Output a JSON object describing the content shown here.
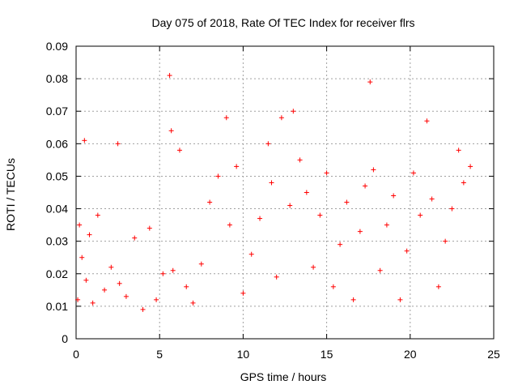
{
  "chart_data": {
    "type": "scatter",
    "title": "Day 075 of 2018, Rate Of TEC Index for receiver flrs",
    "xlabel": "GPS time / hours",
    "ylabel": "ROTI / TECUs",
    "xlim": [
      0,
      25
    ],
    "ylim": [
      0,
      0.09
    ],
    "x_ticks": [
      0,
      5,
      10,
      15,
      20,
      25
    ],
    "x_tick_labels": [
      "0",
      "5",
      "10",
      "15",
      "20",
      "25"
    ],
    "y_ticks": [
      0,
      0.01,
      0.02,
      0.03,
      0.04,
      0.05,
      0.06,
      0.07,
      0.08,
      0.09
    ],
    "y_tick_labels": [
      "0",
      "0.01",
      "0.02",
      "0.03",
      "0.04",
      "0.05",
      "0.06",
      "0.07",
      "0.08",
      "0.09"
    ],
    "grid": true,
    "marker": "+",
    "color": "#ff0000",
    "series": [
      {
        "name": "ROTI",
        "x": [
          0.1,
          0.2,
          0.35,
          0.5,
          0.6,
          0.8,
          1.0,
          1.3,
          1.7,
          2.1,
          2.5,
          2.6,
          3.0,
          3.5,
          4.0,
          4.4,
          4.8,
          5.2,
          5.6,
          5.7,
          5.8,
          6.2,
          6.6,
          7.0,
          7.5,
          8.0,
          8.5,
          9.0,
          9.2,
          9.6,
          10.0,
          10.5,
          11.0,
          11.5,
          11.7,
          12.0,
          12.3,
          12.8,
          13.0,
          13.4,
          13.8,
          14.2,
          14.6,
          15.0,
          15.4,
          15.8,
          16.2,
          16.6,
          17.0,
          17.3,
          17.6,
          17.8,
          18.2,
          18.6,
          19.0,
          19.4,
          19.8,
          20.2,
          20.6,
          21.0,
          21.3,
          21.7,
          22.1,
          22.5,
          22.9,
          23.2,
          23.6
        ],
        "y": [
          0.012,
          0.035,
          0.025,
          0.061,
          0.018,
          0.032,
          0.011,
          0.038,
          0.015,
          0.022,
          0.06,
          0.017,
          0.013,
          0.031,
          0.009,
          0.034,
          0.012,
          0.02,
          0.081,
          0.064,
          0.021,
          0.058,
          0.016,
          0.011,
          0.023,
          0.042,
          0.05,
          0.068,
          0.035,
          0.053,
          0.014,
          0.026,
          0.037,
          0.06,
          0.048,
          0.019,
          0.068,
          0.041,
          0.07,
          0.055,
          0.045,
          0.022,
          0.038,
          0.051,
          0.016,
          0.029,
          0.042,
          0.012,
          0.033,
          0.047,
          0.079,
          0.052,
          0.021,
          0.035,
          0.044,
          0.012,
          0.027,
          0.051,
          0.038,
          0.067,
          0.043,
          0.016,
          0.03,
          0.04,
          0.058,
          0.048,
          0.053
        ]
      }
    ]
  }
}
